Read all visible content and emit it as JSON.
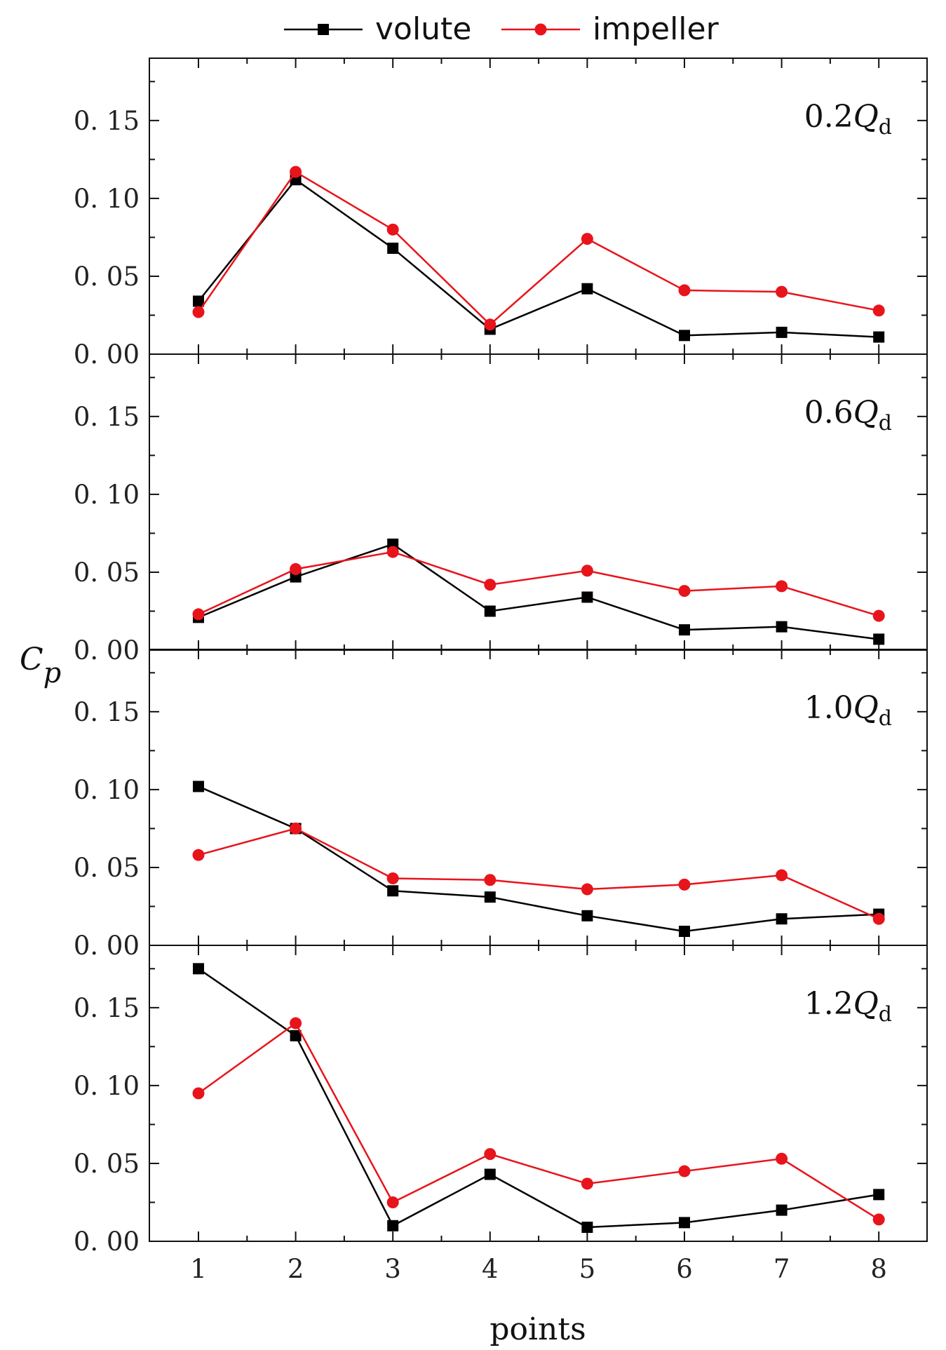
{
  "chart_data": {
    "type": "line",
    "ylabel_main": "C",
    "ylabel_sub": "p",
    "xlabel": "points",
    "categories": [
      "1",
      "2",
      "3",
      "4",
      "5",
      "6",
      "7",
      "8"
    ],
    "ylim": [
      0,
      0.19
    ],
    "yticks": [
      0,
      0.05,
      0.1,
      0.15
    ],
    "ytick_labels": [
      "0. 00",
      "0. 05",
      "0. 10",
      "0. 15"
    ],
    "legend": {
      "placement": "top-center",
      "entries": [
        {
          "name": "volute",
          "marker": "square",
          "color": "#000000"
        },
        {
          "name": "impeller",
          "marker": "circle",
          "color": "#e8141b"
        }
      ]
    },
    "panels": [
      {
        "label_main": "0.2",
        "label_italic": "Q",
        "label_sub": "d",
        "series": [
          {
            "name": "volute",
            "values": [
              0.034,
              0.112,
              0.068,
              0.016,
              0.042,
              0.012,
              0.014,
              0.011
            ]
          },
          {
            "name": "impeller",
            "values": [
              0.027,
              0.117,
              0.08,
              0.019,
              0.074,
              0.041,
              0.04,
              0.028
            ]
          }
        ]
      },
      {
        "label_main": "0.6",
        "label_italic": "Q",
        "label_sub": "d",
        "series": [
          {
            "name": "volute",
            "values": [
              0.021,
              0.047,
              0.068,
              0.025,
              0.034,
              0.013,
              0.015,
              0.007
            ]
          },
          {
            "name": "impeller",
            "values": [
              0.023,
              0.052,
              0.063,
              0.042,
              0.051,
              0.038,
              0.041,
              0.022
            ]
          }
        ]
      },
      {
        "label_main": "1.0",
        "label_italic": "Q",
        "label_sub": "d",
        "series": [
          {
            "name": "volute",
            "values": [
              0.102,
              0.075,
              0.035,
              0.031,
              0.019,
              0.009,
              0.017,
              0.02
            ]
          },
          {
            "name": "impeller",
            "values": [
              0.058,
              0.075,
              0.043,
              0.042,
              0.036,
              0.039,
              0.045,
              0.017
            ]
          }
        ]
      },
      {
        "label_main": "1.2",
        "label_italic": "Q",
        "label_sub": "d",
        "series": [
          {
            "name": "volute",
            "values": [
              0.175,
              0.132,
              0.01,
              0.043,
              0.009,
              0.012,
              0.02,
              0.03
            ]
          },
          {
            "name": "impeller",
            "values": [
              0.095,
              0.14,
              0.025,
              0.056,
              0.037,
              0.045,
              0.053,
              0.014
            ]
          }
        ]
      }
    ]
  }
}
